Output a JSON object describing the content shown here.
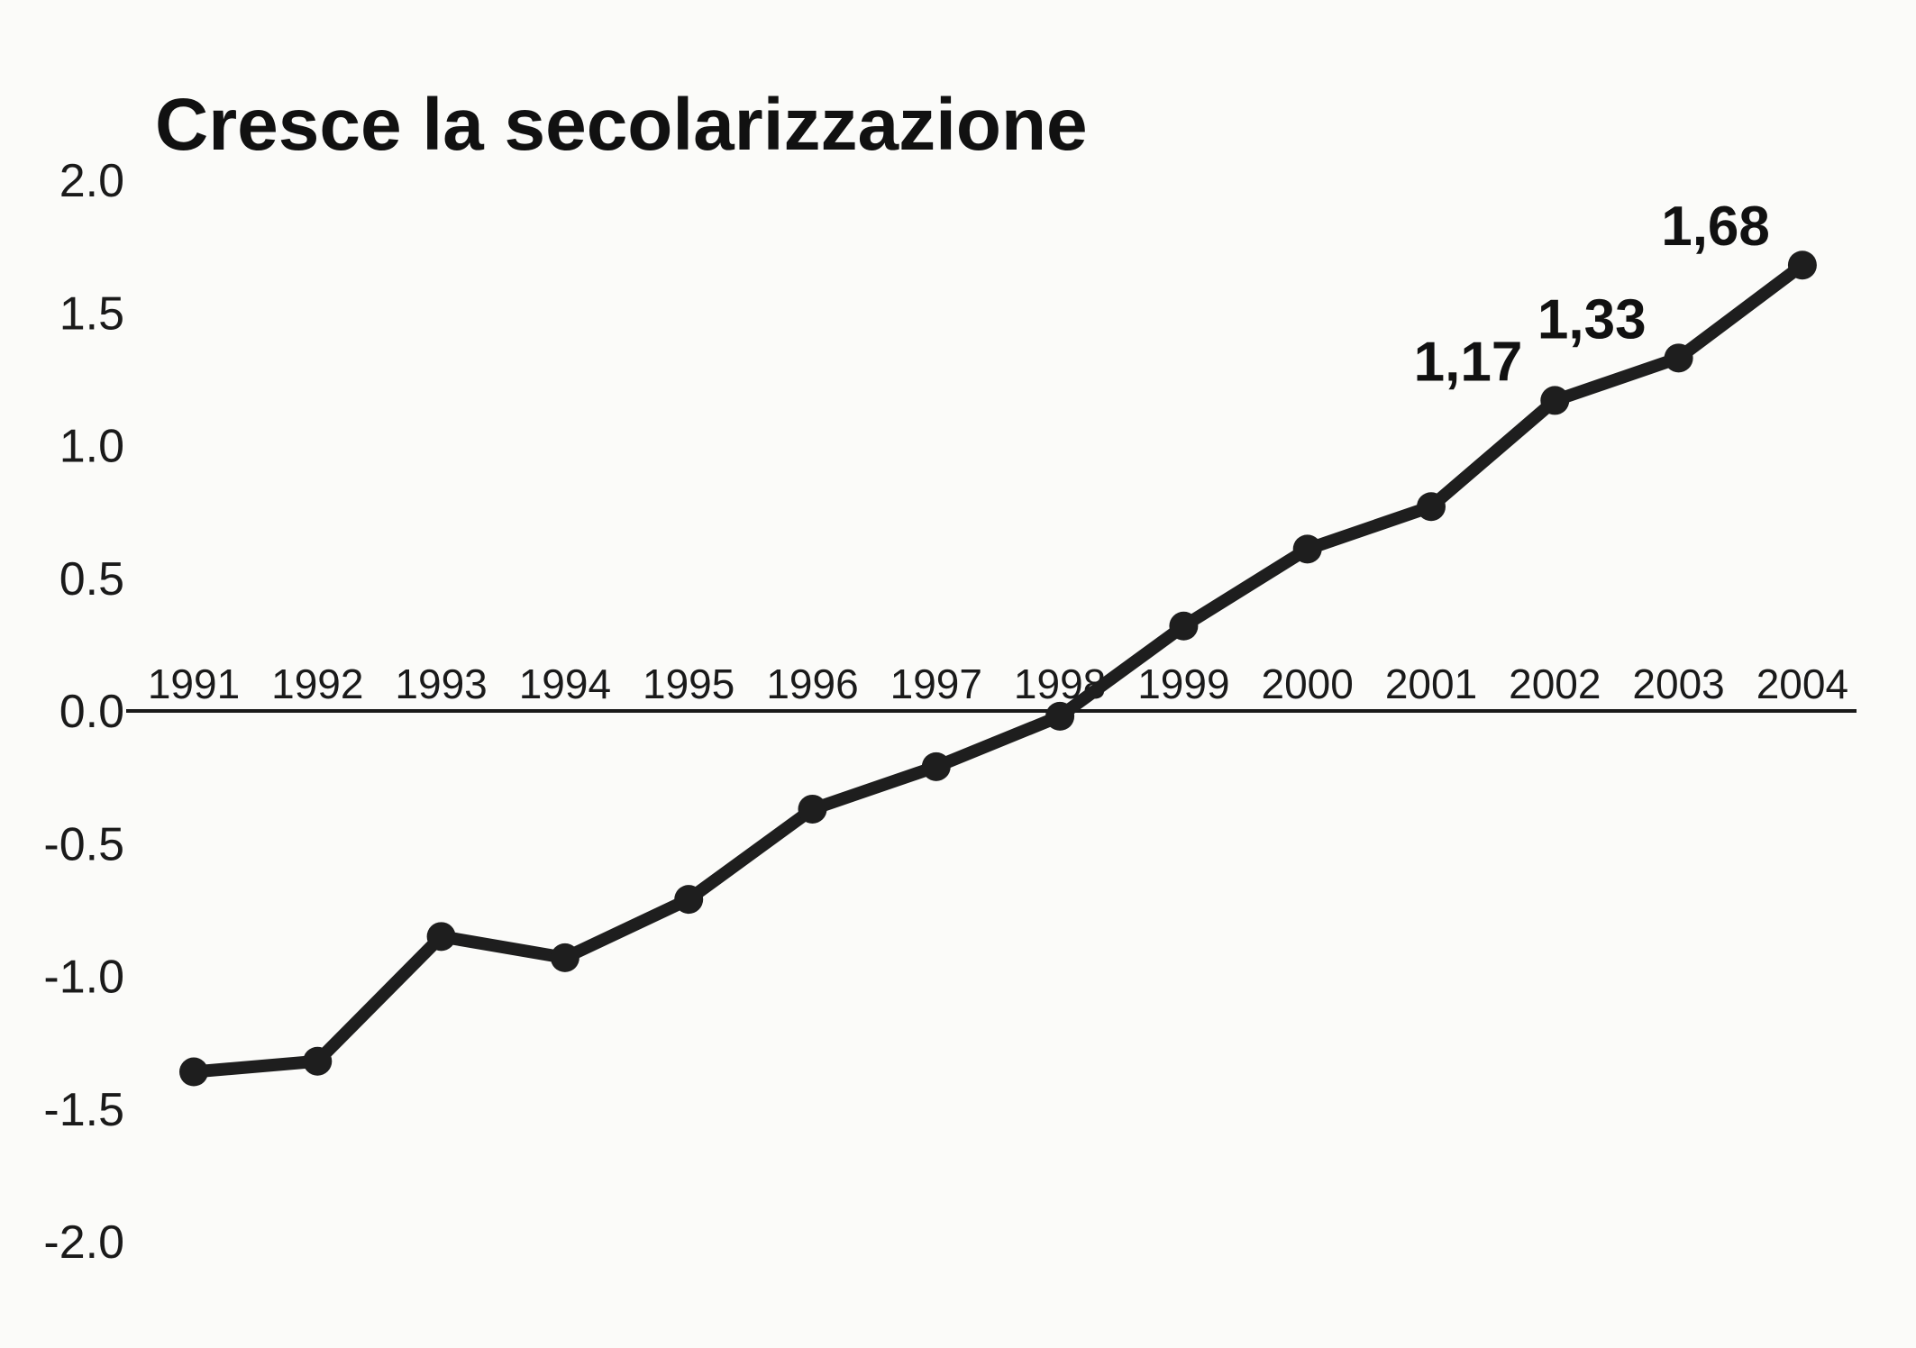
{
  "chart_data": {
    "type": "line",
    "title": "Cresce la secolarizzazione",
    "xlabel": "",
    "ylabel": "",
    "categories": [
      "1991",
      "1992",
      "1993",
      "1994",
      "1995",
      "1996",
      "1997",
      "1998",
      "1999",
      "2000",
      "2001",
      "2002",
      "2003",
      "2004"
    ],
    "series": [
      {
        "values": [
          -1.36,
          -1.32,
          -0.85,
          -0.93,
          -0.71,
          -0.37,
          -0.21,
          -0.02,
          0.32,
          0.61,
          0.77,
          1.17,
          1.33,
          1.68
        ]
      }
    ],
    "ylim": [
      -2.0,
      2.0
    ],
    "yticks": [
      "2.0",
      "1.5",
      "1.0",
      "0.5",
      "0.0",
      "-0.5",
      "-1.0",
      "-1.5",
      "-2.0"
    ],
    "ytick_values": [
      2.0,
      1.5,
      1.0,
      0.5,
      0.0,
      -0.5,
      -1.0,
      -1.5,
      -2.0
    ],
    "data_labels": [
      {
        "index": 11,
        "text": "1,17"
      },
      {
        "index": 12,
        "text": "1,33"
      },
      {
        "index": 13,
        "text": "1,68"
      }
    ],
    "grid": false,
    "legend": "none",
    "line_color": "#1e1e1e",
    "background_color": "#fbfbf9"
  }
}
